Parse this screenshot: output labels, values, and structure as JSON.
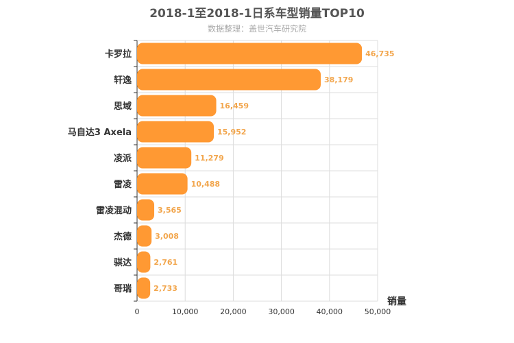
{
  "chart_data": {
    "type": "bar",
    "orientation": "horizontal",
    "title": "2018-1至2018-1日系车型销量TOP10",
    "subtitle": "数据整理：盖世汽车研究院",
    "categories": [
      "卡罗拉",
      "轩逸",
      "思域",
      "马自达3 Axela",
      "凌派",
      "雷凌",
      "雷凌混动",
      "杰德",
      "骐达",
      "哥瑞"
    ],
    "values": [
      46735,
      38179,
      16459,
      15952,
      11279,
      10488,
      3565,
      3008,
      2761,
      2733
    ],
    "value_labels": [
      "46,735",
      "38,179",
      "16,459",
      "15,952",
      "11,279",
      "10,488",
      "3,565",
      "3,008",
      "2,761",
      "2,733"
    ],
    "xlabel": "销量",
    "ylabel": "",
    "xlim": [
      0,
      50000
    ],
    "xticks": [
      0,
      10000,
      20000,
      30000,
      40000,
      50000
    ],
    "xtick_labels": [
      "0",
      "10,000",
      "20,000",
      "30,000",
      "40,000",
      "50,000"
    ],
    "grid": true,
    "bar_color": "#ff9933",
    "value_label_color": "#f2a64d"
  }
}
